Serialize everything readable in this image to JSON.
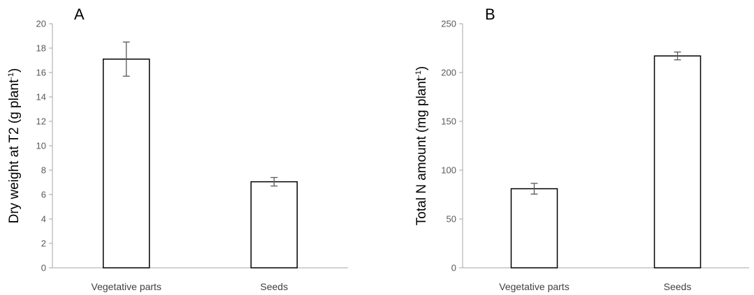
{
  "colors": {
    "bar_fill": "#ffffff",
    "bar_stroke": "#000000",
    "axis": "#a6a6a6",
    "error_bar": "#595959"
  },
  "chart_data": [
    {
      "type": "bar",
      "panel_label": "A",
      "categories": [
        "Vegetative parts",
        "Seeds"
      ],
      "values": [
        17.1,
        7.05
      ],
      "errors": [
        1.4,
        0.35
      ],
      "ylabel": "Dry weight at T2 (g plant",
      "ylabel_sup": "-1",
      "ylabel_close": ")",
      "ylim": [
        0,
        20
      ],
      "yticks": [
        0,
        2,
        4,
        6,
        8,
        10,
        12,
        14,
        16,
        18,
        20
      ],
      "grid": false,
      "legend": "none"
    },
    {
      "type": "bar",
      "panel_label": "B",
      "categories": [
        "Vegetative parts",
        "Seeds"
      ],
      "values": [
        81,
        217
      ],
      "errors": [
        5.5,
        4
      ],
      "ylabel": "Total N amount  (mg plant",
      "ylabel_sup": "-1",
      "ylabel_close": ")",
      "ylim": [
        0,
        250
      ],
      "yticks": [
        0,
        50,
        100,
        150,
        200,
        250
      ],
      "grid": false,
      "legend": "none"
    }
  ]
}
